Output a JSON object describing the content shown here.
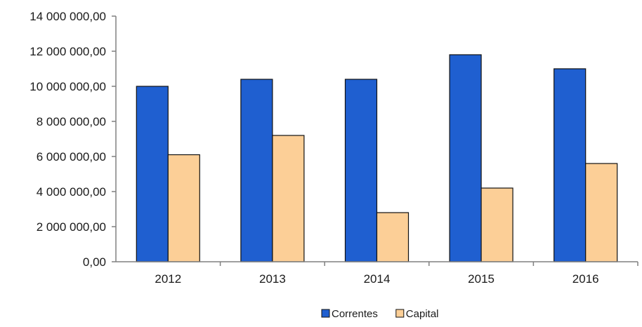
{
  "chart_data": {
    "type": "bar",
    "title": "",
    "xlabel": "",
    "ylabel": "",
    "categories": [
      "2012",
      "2013",
      "2014",
      "2015",
      "2016"
    ],
    "series": [
      {
        "name": "Correntes",
        "values": [
          10000000,
          10400000,
          10400000,
          11800000,
          11000000
        ],
        "color": "#1f5fd0"
      },
      {
        "name": "Capital",
        "values": [
          6100000,
          7200000,
          2800000,
          4200000,
          5600000
        ],
        "color": "#fccf97"
      }
    ],
    "ylim": [
      0,
      14000000
    ],
    "yticks": [
      0,
      2000000,
      4000000,
      6000000,
      8000000,
      10000000,
      12000000,
      14000000
    ],
    "ytick_labels": [
      "0,00",
      "2 000 000,00",
      "4 000 000,00",
      "6 000 000,00",
      "8 000 000,00",
      "10 000 000,00",
      "12 000 000,00",
      "14 000 000,00"
    ],
    "grid": false,
    "legend_position": "bottom-center"
  }
}
